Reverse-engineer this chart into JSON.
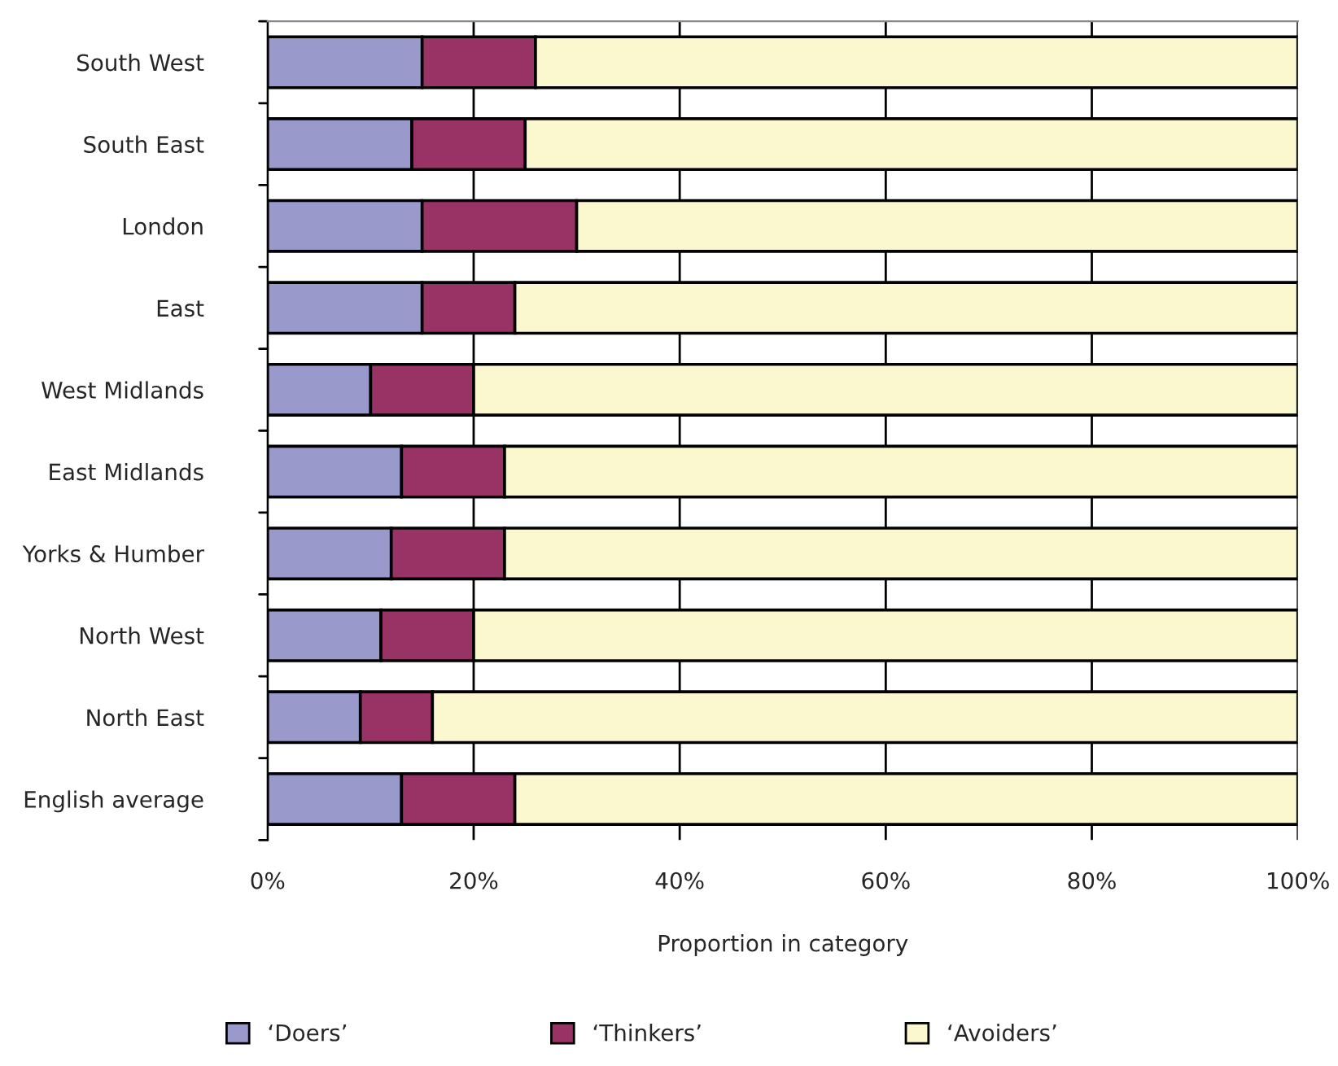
{
  "chart_data": {
    "type": "bar",
    "orientation": "horizontal",
    "stacked": true,
    "categories": [
      "South West",
      "South East",
      "London",
      "East",
      "West Midlands",
      "East Midlands",
      "Yorks & Humber",
      "North West",
      "North East",
      "English average"
    ],
    "series": [
      {
        "name": "‘Doers’",
        "color": "#9999cc",
        "values": [
          15,
          14,
          15,
          15,
          10,
          13,
          12,
          11,
          9,
          13
        ]
      },
      {
        "name": "‘Thinkers’",
        "color": "#993366",
        "values": [
          11,
          11,
          15,
          9,
          10,
          10,
          11,
          9,
          7,
          11
        ]
      },
      {
        "name": "‘Avoiders’",
        "color": "#fbf8cf",
        "values": [
          74,
          75,
          70,
          76,
          80,
          77,
          77,
          80,
          84,
          76
        ]
      }
    ],
    "xlim": [
      0,
      100
    ],
    "xticks": [
      {
        "value": 0,
        "label": "0%"
      },
      {
        "value": 20,
        "label": "20%"
      },
      {
        "value": 40,
        "label": "40%"
      },
      {
        "value": 60,
        "label": "60%"
      },
      {
        "value": 80,
        "label": "80%"
      },
      {
        "value": 100,
        "label": "100%"
      }
    ],
    "xlabel": "Proportion in category",
    "grid": "x",
    "legend": "bottom"
  }
}
